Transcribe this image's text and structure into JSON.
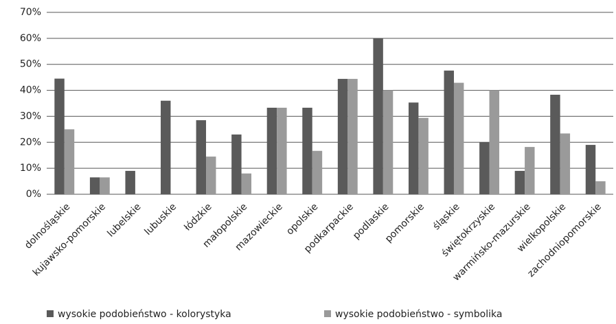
{
  "chart_data": {
    "type": "bar",
    "categories": [
      "dolnośląskie",
      "kujawsko-pomorskie",
      "lubelskie",
      "lubuskie",
      "łódzkie",
      "małopolskie",
      "mazowieckie",
      "opolskie",
      "podkarpackie",
      "podlaskie",
      "pomorskie",
      "śląskie",
      "świętokrzyskie",
      "warmińsko-mazurskie",
      "wielkopolskie",
      "zachodniopomorskie"
    ],
    "series": [
      {
        "name": "wysokie podobieństwo - kolorystyka",
        "color": "#5a5a5a",
        "values": [
          44.5,
          6.5,
          9,
          36,
          28.5,
          23,
          33.3,
          33.3,
          44.4,
          60,
          35.3,
          47.6,
          20,
          9,
          38.3,
          19
        ]
      },
      {
        "name": "wysokie podobieństwo - symbolika",
        "color": "#9a9a9a",
        "values": [
          25,
          6.5,
          0,
          0,
          14.5,
          8,
          33.3,
          16.7,
          44.4,
          40,
          29.4,
          42.9,
          40,
          18.2,
          23.4,
          5
        ]
      }
    ],
    "ylim": [
      0,
      70
    ],
    "yticks": [
      {
        "value": 0,
        "label": "0%"
      },
      {
        "value": 10,
        "label": "10%"
      },
      {
        "value": 20,
        "label": "20%"
      },
      {
        "value": 30,
        "label": "30%"
      },
      {
        "value": 40,
        "label": "40%"
      },
      {
        "value": 50,
        "label": "50%"
      },
      {
        "value": 60,
        "label": "60%"
      },
      {
        "value": 70,
        "label": "70%"
      }
    ],
    "grid": true,
    "legend": "bottom"
  }
}
